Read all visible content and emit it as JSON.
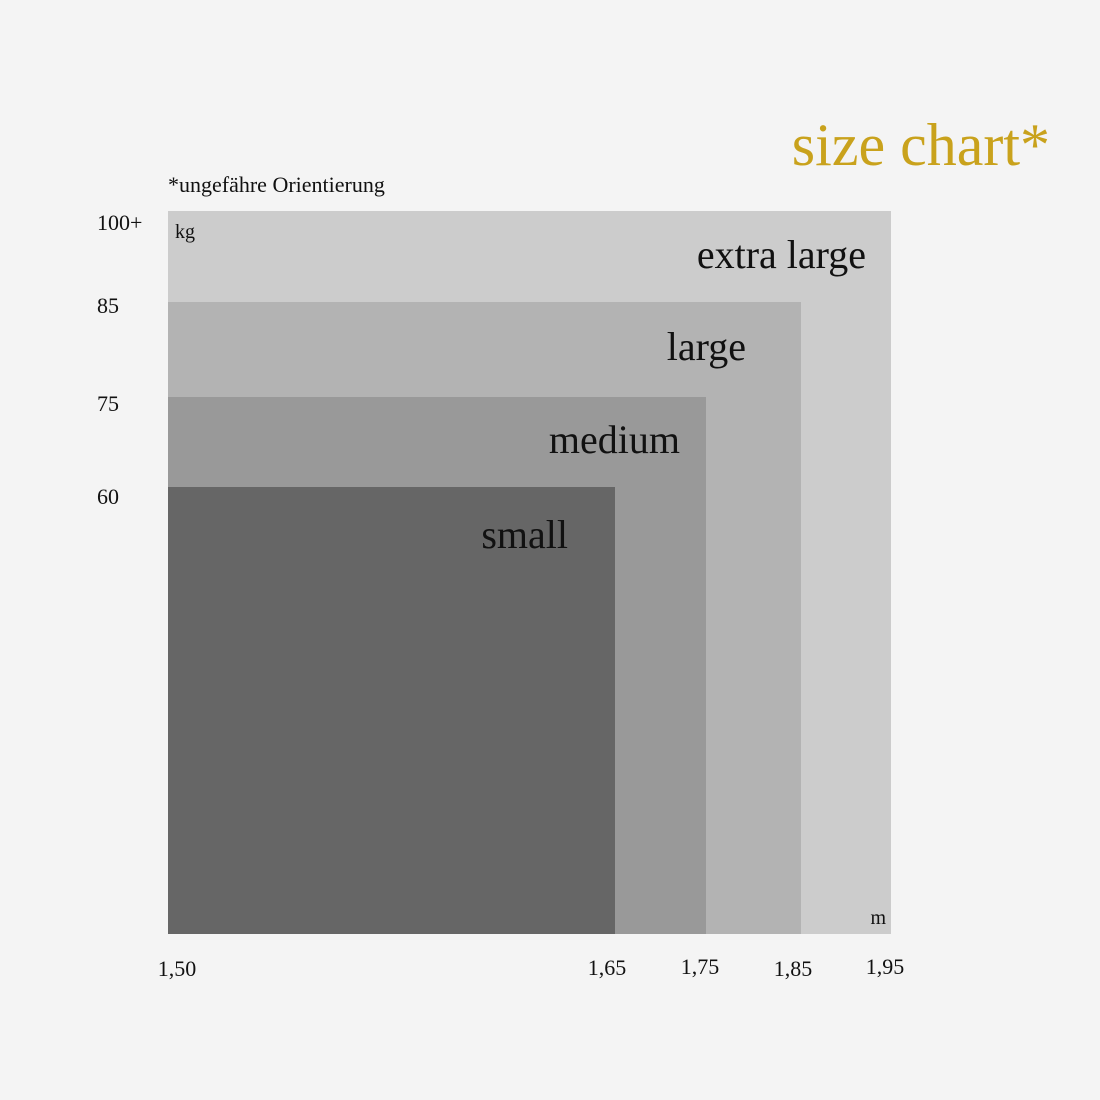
{
  "header": {
    "title": "size chart*",
    "note": "*ungefähre Orientierung"
  },
  "axes": {
    "y_unit": "kg",
    "x_unit": "m",
    "y_ticks": [
      "100+",
      "85",
      "75",
      "60"
    ],
    "x_ticks": [
      "1,50",
      "1,65",
      "1,75",
      "1,85",
      "1,95"
    ]
  },
  "sizes": [
    "extra large",
    "large",
    "medium",
    "small"
  ]
}
